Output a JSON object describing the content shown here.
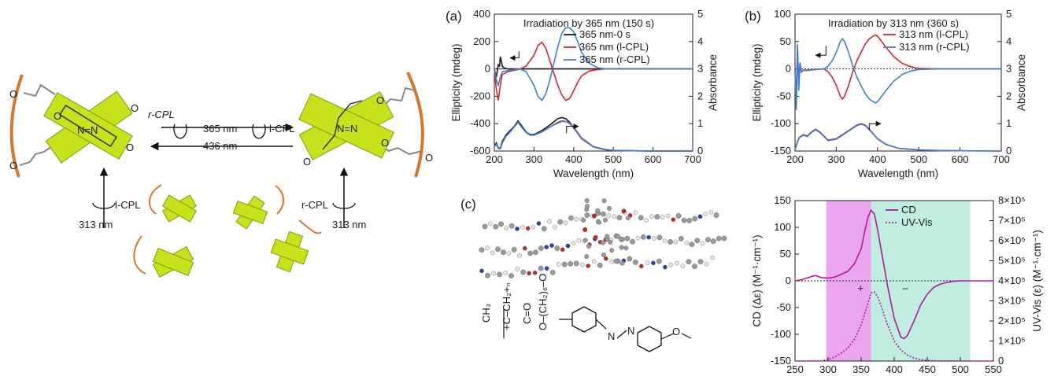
{
  "colors": {
    "black": "#1a1a1a",
    "red": "#d62728",
    "blue": "#3b7fd4",
    "magenta": "#b5179e",
    "pink_band": "#e9a6ee",
    "teal_band": "#bfeee0",
    "green_block": "#c6e21b",
    "green_edge": "#7f9a10",
    "orange_chain": "#d6772a"
  },
  "schematic": {
    "wavelength_top": "365 nm",
    "wavelength_bottom": "436 nm",
    "rcpl_top": "r-CPL",
    "lcpl_top": "l-CPL",
    "left_cpl": "l-CPL",
    "right_cpl": "r-CPL",
    "left_nm": "313 nm",
    "right_nm": "313 nm"
  },
  "chart_data": [
    {
      "id": "a",
      "panel_label": "(a)",
      "type": "line",
      "title": "Irradiation by 365 nm (150 s)",
      "xlabel": "Wavelength (nm)",
      "ylabel": "Ellipticity (mdeg)",
      "y2label": "Absorbance",
      "xlim": [
        200,
        700
      ],
      "ylim": [
        -600,
        400
      ],
      "y2lim": [
        0,
        5
      ],
      "xticks": [
        "200",
        "300",
        "400",
        "500",
        "600",
        "700"
      ],
      "yticks": [
        "-600",
        "-400",
        "-200",
        "0",
        "200",
        "400"
      ],
      "y2ticks": [
        "0",
        "1",
        "2",
        "3",
        "4",
        "5"
      ],
      "series": [
        {
          "name": "365 nm-0 s",
          "axis": "cd",
          "color": "black",
          "x": [
            200,
            205,
            210,
            213,
            215,
            218,
            220,
            225,
            235,
            300,
            400,
            500,
            600,
            700
          ],
          "y": [
            0,
            -60,
            30,
            20,
            90,
            55,
            20,
            6,
            0,
            0,
            0,
            0,
            0,
            0
          ]
        },
        {
          "name": "365 nm (l-CPL)",
          "axis": "cd",
          "color": "red",
          "x": [
            200,
            205,
            210,
            215,
            220,
            225,
            235,
            250,
            265,
            280,
            300,
            310,
            320,
            330,
            340,
            350,
            360,
            370,
            380,
            390,
            400,
            410,
            420,
            440,
            460,
            480,
            500,
            550,
            600,
            700
          ],
          "y": [
            0,
            -150,
            -230,
            -120,
            -40,
            -35,
            -20,
            -10,
            -2,
            20,
            100,
            170,
            195,
            150,
            60,
            -30,
            -120,
            -190,
            -230,
            -215,
            -160,
            -100,
            -50,
            -15,
            -5,
            0,
            0,
            0,
            0,
            0
          ]
        },
        {
          "name": "365 nm (r-CPL)",
          "axis": "cd",
          "color": "blue",
          "x": [
            200,
            205,
            210,
            215,
            220,
            225,
            235,
            250,
            265,
            280,
            300,
            310,
            320,
            330,
            340,
            350,
            360,
            370,
            380,
            390,
            400,
            410,
            420,
            440,
            460,
            480,
            500,
            550,
            600,
            700
          ],
          "y": [
            0,
            -80,
            -120,
            -60,
            -20,
            -18,
            -12,
            -5,
            0,
            -20,
            -120,
            -200,
            -230,
            -180,
            -80,
            40,
            160,
            260,
            300,
            300,
            270,
            200,
            120,
            40,
            10,
            0,
            0,
            0,
            0,
            0
          ]
        },
        {
          "name": "abs 0 s",
          "axis": "abs",
          "color": "black",
          "x": [
            200,
            205,
            210,
            215,
            220,
            230,
            240,
            250,
            260,
            270,
            280,
            290,
            300,
            320,
            340,
            360,
            370,
            380,
            390,
            400,
            420,
            450,
            480,
            500,
            550,
            600,
            650,
            700
          ],
          "y": [
            0.18,
            0.3,
            0.12,
            0.1,
            0.35,
            0.6,
            0.75,
            0.9,
            1.1,
            0.9,
            0.7,
            0.6,
            0.6,
            0.75,
            0.95,
            1.18,
            1.22,
            1.18,
            1.05,
            0.85,
            0.45,
            0.15,
            0.05,
            0.02,
            0.01,
            0.0,
            0.0,
            0.0
          ]
        },
        {
          "name": "abs l-CPL",
          "axis": "abs",
          "color": "red",
          "x": [
            200,
            205,
            210,
            215,
            220,
            230,
            240,
            250,
            260,
            270,
            280,
            290,
            300,
            320,
            340,
            360,
            370,
            380,
            390,
            400,
            420,
            450,
            480,
            500,
            550,
            600,
            650,
            700
          ],
          "y": [
            0.15,
            0.25,
            0.1,
            0.08,
            0.3,
            0.55,
            0.7,
            0.88,
            1.05,
            0.85,
            0.68,
            0.58,
            0.58,
            0.7,
            0.88,
            1.05,
            1.1,
            1.08,
            1.0,
            0.85,
            0.45,
            0.15,
            0.05,
            0.02,
            0.01,
            0.0,
            0.0,
            0.0
          ]
        },
        {
          "name": "abs r-CPL",
          "axis": "abs",
          "color": "blue",
          "x": [
            200,
            205,
            210,
            215,
            220,
            230,
            240,
            250,
            260,
            270,
            280,
            290,
            300,
            320,
            340,
            360,
            370,
            380,
            390,
            400,
            420,
            450,
            480,
            500,
            550,
            600,
            650,
            700
          ],
          "y": [
            0.15,
            0.25,
            0.1,
            0.08,
            0.3,
            0.55,
            0.7,
            0.88,
            1.05,
            0.85,
            0.68,
            0.58,
            0.58,
            0.7,
            0.88,
            1.02,
            1.08,
            1.08,
            1.02,
            0.88,
            0.48,
            0.16,
            0.06,
            0.03,
            0.01,
            0.0,
            0.0,
            0.0
          ]
        }
      ],
      "legend": [
        {
          "label": "365 nm-0 s",
          "color": "black"
        },
        {
          "label": "365 nm (l-CPL)",
          "color": "red"
        },
        {
          "label": "365 nm (r-CPL)",
          "color": "blue"
        }
      ]
    },
    {
      "id": "b",
      "panel_label": "(b)",
      "type": "line",
      "title": "Irradiation by 313 nm (360 s)",
      "xlabel": "Wavelength (nm)",
      "ylabel": "Ellipticity (mdeg)",
      "y2label": "Absorbance",
      "xlim": [
        200,
        700
      ],
      "ylim": [
        -150,
        100
      ],
      "y2lim": [
        0,
        5
      ],
      "xticks": [
        "200",
        "300",
        "400",
        "500",
        "600",
        "700"
      ],
      "yticks": [
        "-150",
        "-100",
        "-50",
        "0",
        "50",
        "100"
      ],
      "y2ticks": [
        "0",
        "1",
        "2",
        "3",
        "4",
        "5"
      ],
      "series": [
        {
          "name": "313 nm (l-CPL)",
          "axis": "cd",
          "color": "red",
          "x": [
            200,
            203,
            206,
            209,
            212,
            215,
            220,
            230,
            250,
            270,
            280,
            290,
            300,
            310,
            315,
            320,
            330,
            340,
            350,
            360,
            370,
            380,
            390,
            395,
            400,
            410,
            420,
            440,
            460,
            480,
            500,
            550,
            600,
            700
          ],
          "y": [
            0,
            -60,
            40,
            -30,
            10,
            -5,
            -2,
            -2,
            -1,
            0,
            -5,
            -15,
            -30,
            -50,
            -55,
            -50,
            -30,
            -5,
            15,
            30,
            45,
            55,
            60,
            62,
            60,
            50,
            40,
            22,
            10,
            4,
            1,
            0,
            0,
            0
          ]
        },
        {
          "name": "313 nm (r-CPL)",
          "axis": "cd",
          "color": "blue",
          "x": [
            200,
            203,
            206,
            209,
            212,
            215,
            220,
            230,
            250,
            270,
            280,
            290,
            300,
            310,
            315,
            320,
            330,
            340,
            350,
            360,
            370,
            380,
            390,
            395,
            400,
            410,
            420,
            440,
            460,
            480,
            500,
            550,
            600,
            700
          ],
          "y": [
            0,
            -75,
            45,
            -40,
            12,
            -6,
            -3,
            -3,
            -1,
            0,
            5,
            15,
            30,
            50,
            55,
            50,
            30,
            5,
            -15,
            -30,
            -45,
            -55,
            -60,
            -62,
            -60,
            -50,
            -40,
            -22,
            -10,
            -4,
            -1,
            0,
            0,
            0
          ]
        },
        {
          "name": "abs l-CPL",
          "axis": "abs",
          "color": "red",
          "x": [
            200,
            205,
            210,
            220,
            230,
            240,
            250,
            260,
            270,
            280,
            300,
            320,
            340,
            350,
            360,
            370,
            380,
            400,
            420,
            450,
            500,
            550,
            600,
            700
          ],
          "y": [
            0.05,
            0.3,
            0.5,
            0.6,
            0.55,
            0.7,
            0.8,
            0.7,
            0.55,
            0.4,
            0.45,
            0.65,
            0.85,
            0.95,
            1.0,
            0.95,
            0.8,
            0.45,
            0.25,
            0.1,
            0.04,
            0.02,
            0.01,
            0.0
          ]
        },
        {
          "name": "abs r-CPL",
          "axis": "abs",
          "color": "blue",
          "x": [
            200,
            205,
            210,
            220,
            230,
            240,
            250,
            260,
            270,
            280,
            300,
            320,
            340,
            350,
            360,
            370,
            380,
            400,
            420,
            450,
            500,
            550,
            600,
            700
          ],
          "y": [
            0.05,
            0.28,
            0.48,
            0.58,
            0.53,
            0.68,
            0.78,
            0.68,
            0.53,
            0.38,
            0.43,
            0.63,
            0.83,
            0.93,
            0.98,
            0.93,
            0.78,
            0.44,
            0.24,
            0.1,
            0.04,
            0.02,
            0.01,
            0.0
          ]
        }
      ],
      "legend": [
        {
          "label": "313 nm (l-CPL)",
          "color": "red"
        },
        {
          "label": "313 nm (r-CPL)",
          "color": "blue"
        }
      ]
    },
    {
      "id": "c",
      "panel_label": "(c)",
      "type": "line",
      "title": "",
      "xlabel": "Wavelength (nm)",
      "ylabel": "CD (Δε) (M⁻¹·cm⁻¹)",
      "y2label": "UV-Vis (ε) (M⁻¹·cm⁻¹)",
      "xlim": [
        250,
        550
      ],
      "ylim": [
        -150,
        150
      ],
      "y2lim": [
        0,
        800000
      ],
      "xticks": [
        "250",
        "300",
        "350",
        "400",
        "450",
        "500",
        "550"
      ],
      "yticks": [
        "-150",
        "-100",
        "-50",
        "0",
        "50",
        "100",
        "150"
      ],
      "y2ticks": [
        "0",
        "1×10⁵",
        "2×10⁵",
        "3×10⁵",
        "4×10⁵",
        "5×10⁵",
        "6×10⁵",
        "7×10⁵",
        "8×10⁵"
      ],
      "bands": [
        {
          "from": 297,
          "to": 365,
          "color": "pink_band",
          "label": "+"
        },
        {
          "from": 365,
          "to": 515,
          "color": "teal_band",
          "label": "–"
        }
      ],
      "series": [
        {
          "name": "CD",
          "axis": "cd",
          "color": "magenta",
          "dash": false,
          "x": [
            250,
            260,
            270,
            280,
            290,
            300,
            310,
            320,
            330,
            340,
            350,
            355,
            360,
            365,
            370,
            375,
            380,
            390,
            400,
            410,
            415,
            420,
            430,
            440,
            450,
            460,
            470,
            480,
            490,
            500,
            520,
            550
          ],
          "y": [
            0,
            2,
            6,
            10,
            6,
            5,
            7,
            12,
            18,
            32,
            60,
            90,
            118,
            132,
            125,
            95,
            60,
            -10,
            -70,
            -105,
            -108,
            -102,
            -75,
            -45,
            -25,
            -12,
            -6,
            -3,
            -1,
            0,
            0,
            0
          ]
        },
        {
          "name": "UV-Vis",
          "axis": "uv",
          "color": "magenta",
          "dash": true,
          "x": [
            250,
            270,
            290,
            300,
            310,
            320,
            330,
            340,
            350,
            360,
            365,
            370,
            375,
            380,
            390,
            400,
            410,
            420,
            430,
            440,
            450,
            470,
            500,
            550
          ],
          "y": [
            0,
            0,
            2000,
            8000,
            20000,
            40000,
            65000,
            110000,
            180000,
            285000,
            340000,
            345000,
            320000,
            275000,
            180000,
            100000,
            55000,
            30000,
            15000,
            7000,
            3000,
            500,
            0,
            0
          ]
        }
      ],
      "legend": [
        {
          "label": "CD",
          "color": "magenta",
          "dash": false
        },
        {
          "label": "UV-Vis",
          "color": "magenta",
          "dash": true
        }
      ]
    }
  ]
}
